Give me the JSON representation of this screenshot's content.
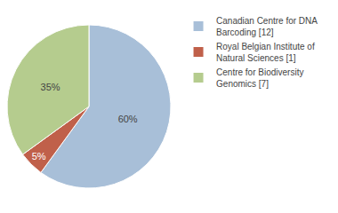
{
  "chart_data": {
    "type": "pie",
    "categories": [
      "Canadian Centre for DNA\nBarcoding [12]",
      "Royal Belgian Institute of\nNatural Sciences [1]",
      "Centre for Biodiversity\nGenomics [7]"
    ],
    "values": [
      60,
      5,
      35
    ],
    "value_labels": [
      "60%",
      "5%",
      "35%"
    ],
    "colors": [
      "#a8bfd8",
      "#c0604a",
      "#b5cc8e"
    ],
    "data_labels": true,
    "legend": "upper right"
  }
}
